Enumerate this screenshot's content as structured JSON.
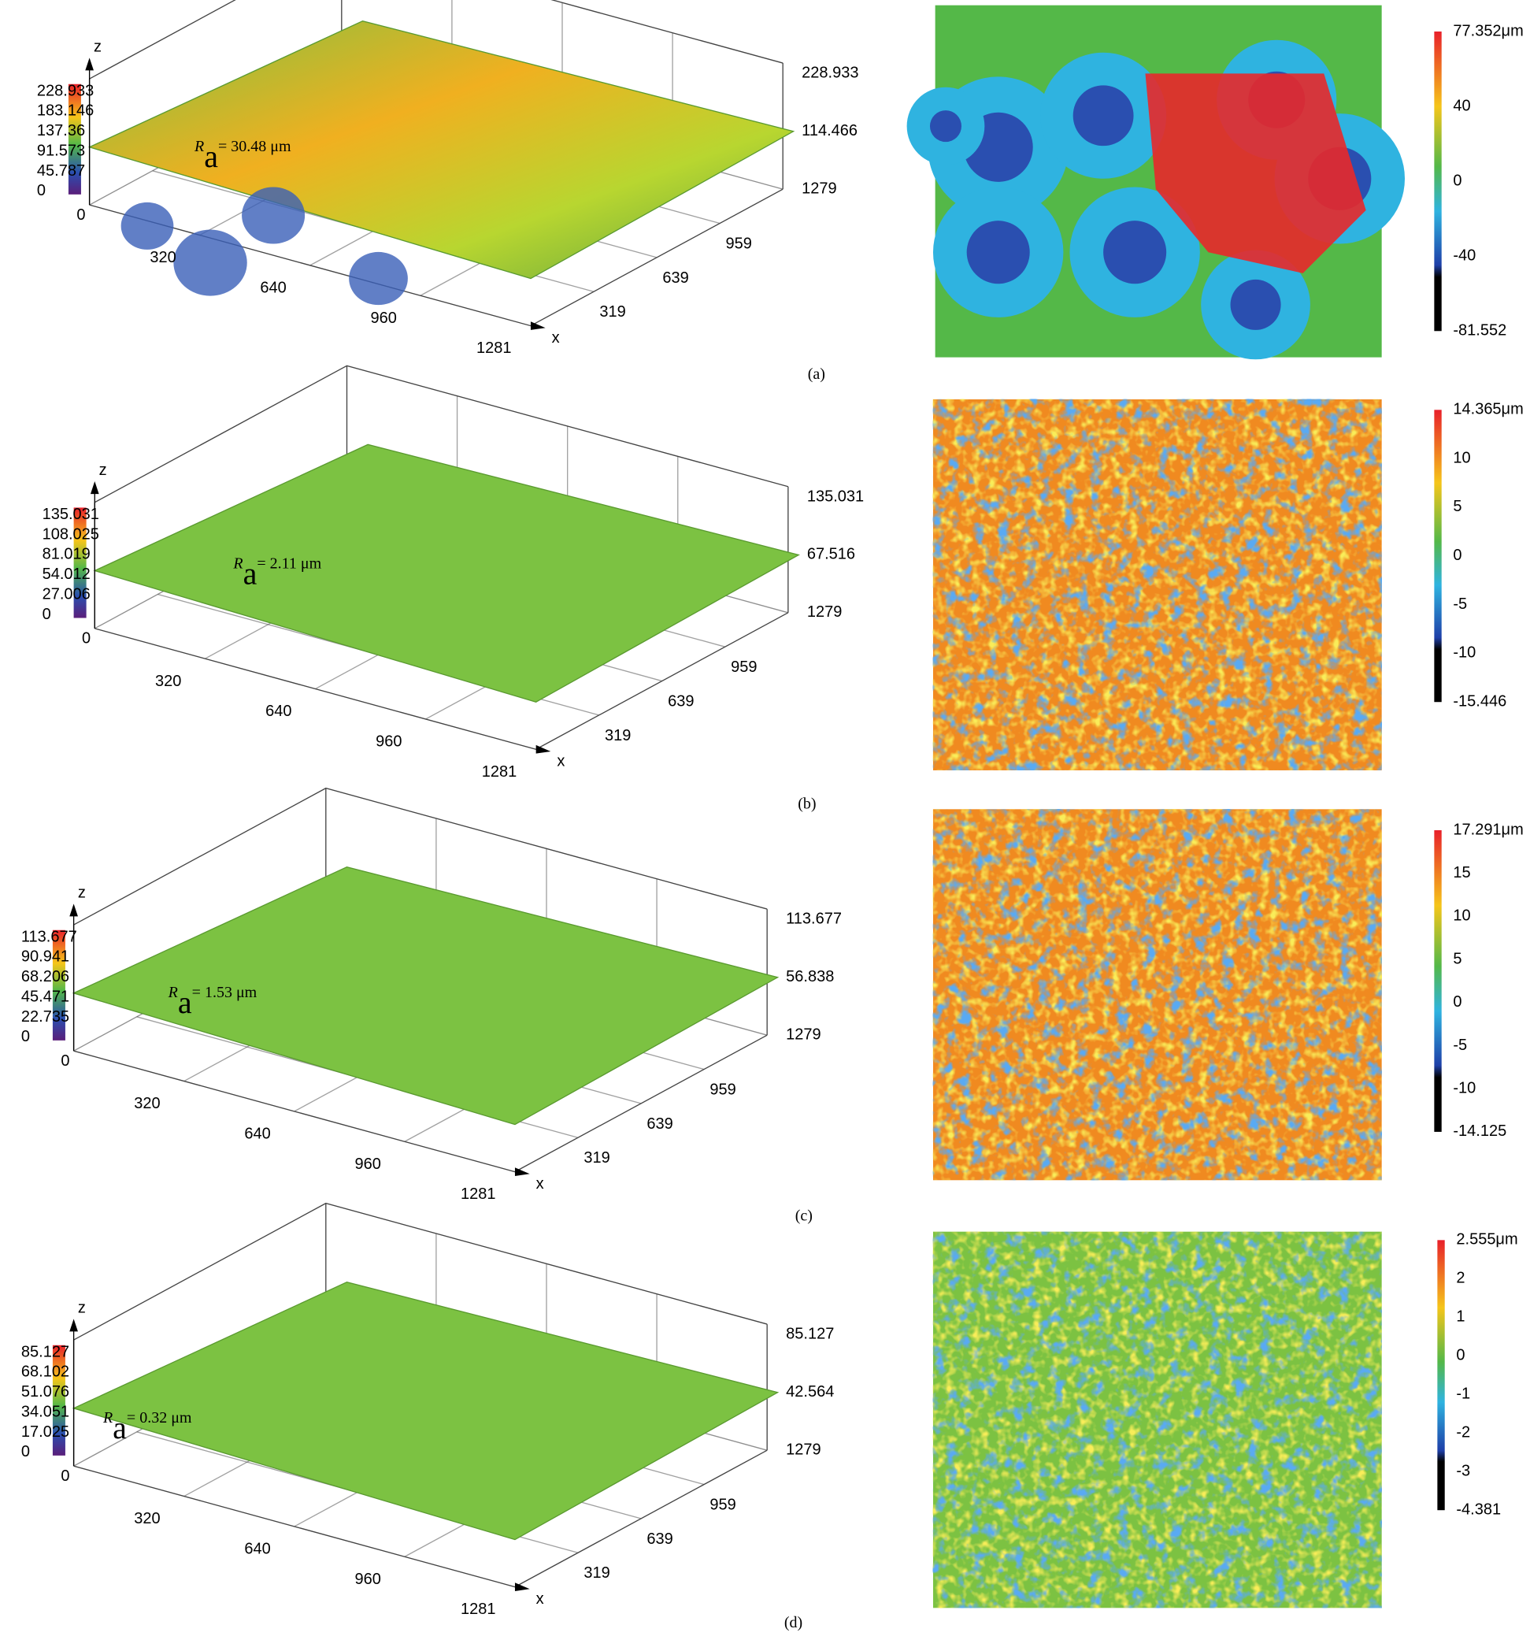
{
  "axis_letters": {
    "z": "z",
    "x": "x"
  },
  "ra_symbol": "R",
  "ra_subscript": "a",
  "panels": [
    {
      "label": "(a)",
      "ra": "= 30.48 μm",
      "z_scale": [
        "228.933",
        "183.146",
        "137.36",
        "91.573",
        "45.787",
        "0"
      ],
      "right_axis": [
        "228.933",
        "114.466",
        "1279"
      ],
      "y_axis": [
        "319",
        "639",
        "959"
      ],
      "x_axis": [
        "0",
        "320",
        "640",
        "960",
        "1281"
      ],
      "colorbar": [
        "77.352μm",
        "40",
        "0",
        "-40",
        "-81.552"
      ]
    },
    {
      "label": "(b)",
      "ra": "= 2.11 μm",
      "z_scale": [
        "135.031",
        "108.025",
        "81.019",
        "54.012",
        "27.006",
        "0"
      ],
      "right_axis": [
        "135.031",
        "67.516",
        "1279"
      ],
      "y_axis": [
        "319",
        "639",
        "959"
      ],
      "x_axis": [
        "0",
        "320",
        "640",
        "960",
        "1281"
      ],
      "colorbar": [
        "14.365μm",
        "10",
        "5",
        "0",
        "-5",
        "-10",
        "-15.446"
      ]
    },
    {
      "label": "(c)",
      "ra": "= 1.53 μm",
      "z_scale": [
        "113.677",
        "90.941",
        "68.206",
        "45.471",
        "22.735",
        "0"
      ],
      "right_axis": [
        "113.677",
        "56.838",
        "1279"
      ],
      "y_axis": [
        "319",
        "639",
        "959"
      ],
      "x_axis": [
        "0",
        "320",
        "640",
        "960",
        "1281"
      ],
      "colorbar": [
        "17.291μm",
        "15",
        "10",
        "5",
        "0",
        "-5",
        "-10",
        "-14.125"
      ]
    },
    {
      "label": "(d)",
      "ra": "= 0.32 μm",
      "z_scale": [
        "85.127",
        "68.102",
        "51.076",
        "34.051",
        "17.025",
        "0"
      ],
      "right_axis": [
        "85.127",
        "42.564",
        "1279"
      ],
      "y_axis": [
        "319",
        "639",
        "959"
      ],
      "x_axis": [
        "0",
        "320",
        "640",
        "960",
        "1281"
      ],
      "colorbar": [
        "2.555μm",
        "2",
        "1",
        "0",
        "-1",
        "-2",
        "-3",
        "-4.381"
      ]
    }
  ]
}
